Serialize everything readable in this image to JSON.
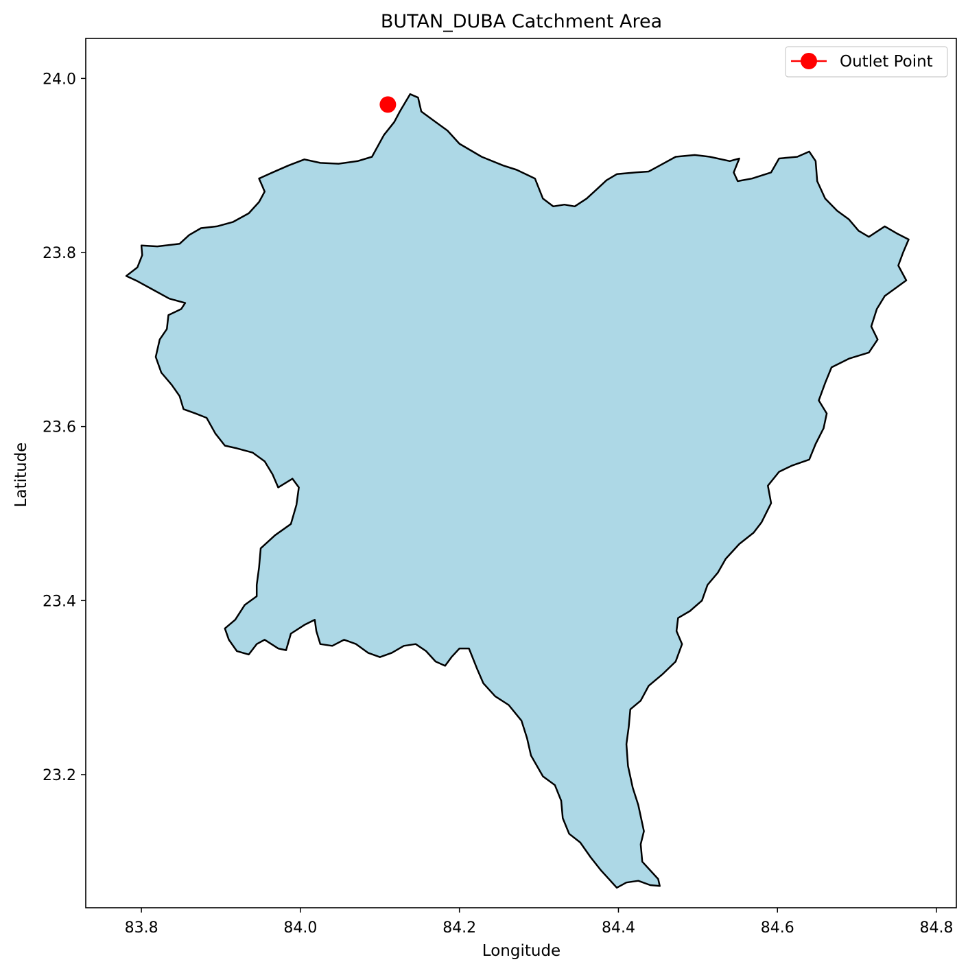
{
  "chart_data": {
    "type": "map",
    "title": "BUTAN_DUBA Catchment Area",
    "xlabel": "Longitude",
    "ylabel": "Latitude",
    "xlim": [
      83.73,
      84.825
    ],
    "ylim": [
      23.047,
      24.046
    ],
    "xticks": [
      83.8,
      84.0,
      84.2,
      84.4,
      84.6,
      84.8
    ],
    "xtick_labels": [
      "83.8",
      "84.0",
      "84.2",
      "84.4",
      "84.6",
      "84.8"
    ],
    "yticks": [
      23.2,
      23.4,
      23.6,
      23.8,
      24.0
    ],
    "ytick_labels": [
      "23.2",
      "23.4",
      "23.6",
      "23.8",
      "24.0"
    ],
    "grid": false,
    "legend": {
      "position": "top-right",
      "entries": [
        "Outlet Point"
      ]
    },
    "catchment": {
      "fill_color": "#add8e6",
      "edge_color": "#000000",
      "boundary_lon_lat": [
        [
          84.125,
          23.962
        ],
        [
          84.138,
          23.982
        ],
        [
          84.148,
          23.978
        ],
        [
          84.152,
          23.962
        ],
        [
          84.17,
          23.95
        ],
        [
          84.185,
          23.94
        ],
        [
          84.2,
          23.925
        ],
        [
          84.228,
          23.91
        ],
        [
          84.255,
          23.9
        ],
        [
          84.272,
          23.895
        ],
        [
          84.295,
          23.885
        ],
        [
          84.305,
          23.862
        ],
        [
          84.318,
          23.853
        ],
        [
          84.332,
          23.855
        ],
        [
          84.345,
          23.853
        ],
        [
          84.36,
          23.862
        ],
        [
          84.372,
          23.872
        ],
        [
          84.385,
          23.883
        ],
        [
          84.398,
          23.89
        ],
        [
          84.422,
          23.892
        ],
        [
          84.438,
          23.893
        ],
        [
          84.452,
          23.9
        ],
        [
          84.472,
          23.91
        ],
        [
          84.496,
          23.912
        ],
        [
          84.515,
          23.91
        ],
        [
          84.54,
          23.905
        ],
        [
          84.552,
          23.908
        ],
        [
          84.545,
          23.892
        ],
        [
          84.55,
          23.882
        ],
        [
          84.568,
          23.885
        ],
        [
          84.592,
          23.892
        ],
        [
          84.602,
          23.908
        ],
        [
          84.625,
          23.91
        ],
        [
          84.64,
          23.916
        ],
        [
          84.648,
          23.905
        ],
        [
          84.65,
          23.882
        ],
        [
          84.66,
          23.862
        ],
        [
          84.675,
          23.848
        ],
        [
          84.69,
          23.838
        ],
        [
          84.702,
          23.825
        ],
        [
          84.715,
          23.818
        ],
        [
          84.735,
          23.83
        ],
        [
          84.75,
          23.822
        ],
        [
          84.765,
          23.815
        ],
        [
          84.758,
          23.8
        ],
        [
          84.752,
          23.785
        ],
        [
          84.762,
          23.768
        ],
        [
          84.75,
          23.76
        ],
        [
          84.735,
          23.75
        ],
        [
          84.725,
          23.735
        ],
        [
          84.718,
          23.715
        ],
        [
          84.726,
          23.7
        ],
        [
          84.715,
          23.685
        ],
        [
          84.69,
          23.678
        ],
        [
          84.668,
          23.668
        ],
        [
          84.66,
          23.65
        ],
        [
          84.652,
          23.63
        ],
        [
          84.662,
          23.615
        ],
        [
          84.658,
          23.598
        ],
        [
          84.648,
          23.58
        ],
        [
          84.64,
          23.562
        ],
        [
          84.618,
          23.555
        ],
        [
          84.602,
          23.548
        ],
        [
          84.588,
          23.532
        ],
        [
          84.592,
          23.512
        ],
        [
          84.58,
          23.49
        ],
        [
          84.57,
          23.478
        ],
        [
          84.552,
          23.465
        ],
        [
          84.535,
          23.448
        ],
        [
          84.525,
          23.432
        ],
        [
          84.512,
          23.418
        ],
        [
          84.505,
          23.4
        ],
        [
          84.49,
          23.388
        ],
        [
          84.475,
          23.38
        ],
        [
          84.473,
          23.365
        ],
        [
          84.48,
          23.35
        ],
        [
          84.472,
          23.33
        ],
        [
          84.455,
          23.315
        ],
        [
          84.438,
          23.302
        ],
        [
          84.428,
          23.285
        ],
        [
          84.415,
          23.275
        ],
        [
          84.413,
          23.255
        ],
        [
          84.41,
          23.235
        ],
        [
          84.412,
          23.21
        ],
        [
          84.418,
          23.185
        ],
        [
          84.425,
          23.165
        ],
        [
          84.432,
          23.135
        ],
        [
          84.428,
          23.12
        ],
        [
          84.43,
          23.1
        ],
        [
          84.442,
          23.088
        ],
        [
          84.45,
          23.08
        ],
        [
          84.452,
          23.072
        ],
        [
          84.44,
          23.073
        ],
        [
          84.425,
          23.078
        ],
        [
          84.41,
          23.076
        ],
        [
          84.398,
          23.07
        ],
        [
          84.39,
          23.078
        ],
        [
          84.378,
          23.09
        ],
        [
          84.365,
          23.105
        ],
        [
          84.352,
          23.122
        ],
        [
          84.338,
          23.132
        ],
        [
          84.33,
          23.15
        ],
        [
          84.328,
          23.17
        ],
        [
          84.32,
          23.188
        ],
        [
          84.305,
          23.198
        ],
        [
          84.29,
          23.222
        ],
        [
          84.285,
          23.242
        ],
        [
          84.278,
          23.262
        ],
        [
          84.262,
          23.28
        ],
        [
          84.245,
          23.29
        ],
        [
          84.23,
          23.305
        ],
        [
          84.222,
          23.322
        ],
        [
          84.212,
          23.345
        ],
        [
          84.2,
          23.345
        ],
        [
          84.19,
          23.335
        ],
        [
          84.182,
          23.325
        ],
        [
          84.17,
          23.33
        ],
        [
          84.158,
          23.342
        ],
        [
          84.145,
          23.35
        ],
        [
          84.13,
          23.348
        ],
        [
          84.115,
          23.34
        ],
        [
          84.1,
          23.335
        ],
        [
          84.085,
          23.34
        ],
        [
          84.07,
          23.35
        ],
        [
          84.055,
          23.355
        ],
        [
          84.04,
          23.348
        ],
        [
          84.025,
          23.35
        ],
        [
          84.02,
          23.365
        ],
        [
          84.018,
          23.378
        ],
        [
          84.005,
          23.372
        ],
        [
          83.988,
          23.362
        ],
        [
          83.982,
          23.343
        ],
        [
          83.972,
          23.345
        ],
        [
          83.955,
          23.355
        ],
        [
          83.945,
          23.35
        ],
        [
          83.935,
          23.338
        ],
        [
          83.92,
          23.342
        ],
        [
          83.91,
          23.355
        ],
        [
          83.905,
          23.368
        ],
        [
          83.918,
          23.378
        ],
        [
          83.93,
          23.395
        ],
        [
          83.945,
          23.405
        ],
        [
          83.945,
          23.418
        ],
        [
          83.948,
          23.438
        ],
        [
          83.95,
          23.46
        ],
        [
          83.968,
          23.475
        ],
        [
          83.988,
          23.488
        ],
        [
          83.995,
          23.51
        ],
        [
          83.998,
          23.53
        ],
        [
          83.99,
          23.54
        ],
        [
          83.972,
          23.53
        ],
        [
          83.965,
          23.545
        ],
        [
          83.955,
          23.56
        ],
        [
          83.94,
          23.57
        ],
        [
          83.92,
          23.575
        ],
        [
          83.905,
          23.578
        ],
        [
          83.893,
          23.592
        ],
        [
          83.882,
          23.61
        ],
        [
          83.868,
          23.615
        ],
        [
          83.853,
          23.62
        ],
        [
          83.848,
          23.635
        ],
        [
          83.838,
          23.648
        ],
        [
          83.825,
          23.662
        ],
        [
          83.818,
          23.68
        ],
        [
          83.823,
          23.7
        ],
        [
          83.832,
          23.712
        ],
        [
          83.834,
          23.728
        ],
        [
          83.85,
          23.735
        ],
        [
          83.855,
          23.742
        ],
        [
          83.835,
          23.747
        ],
        [
          83.815,
          23.757
        ],
        [
          83.795,
          23.767
        ],
        [
          83.781,
          23.773
        ],
        [
          83.795,
          23.783
        ],
        [
          83.801,
          23.797
        ],
        [
          83.8,
          23.808
        ],
        [
          83.82,
          23.807
        ],
        [
          83.848,
          23.81
        ],
        [
          83.86,
          23.82
        ],
        [
          83.875,
          23.828
        ],
        [
          83.895,
          23.83
        ],
        [
          83.915,
          23.835
        ],
        [
          83.935,
          23.845
        ],
        [
          83.948,
          23.858
        ],
        [
          83.955,
          23.87
        ],
        [
          83.948,
          23.885
        ],
        [
          83.965,
          23.892
        ],
        [
          83.985,
          23.9
        ],
        [
          84.005,
          23.907
        ],
        [
          84.025,
          23.903
        ],
        [
          84.048,
          23.902
        ],
        [
          84.072,
          23.905
        ],
        [
          84.09,
          23.91
        ],
        [
          84.105,
          23.935
        ],
        [
          84.118,
          23.95
        ],
        [
          84.125,
          23.962
        ]
      ]
    },
    "outlet_point": {
      "label": "Outlet Point",
      "lon": 84.11,
      "lat": 23.97,
      "color": "#ff0000"
    }
  }
}
